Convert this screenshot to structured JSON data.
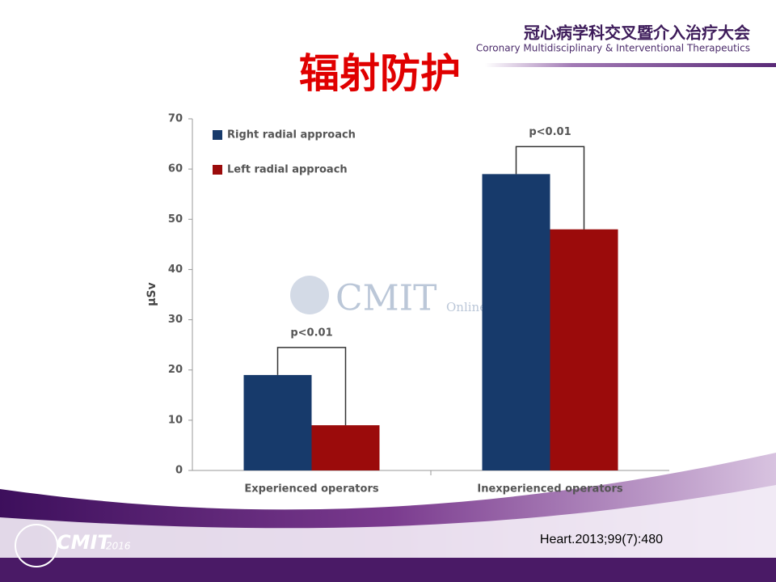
{
  "header": {
    "title": "冠心病学科交叉暨介入治疗大会",
    "subtitle": "Coronary Multidisciplinary & Interventional Therapeutics"
  },
  "watermark": {
    "main": "CMIT",
    "sub": "Online"
  },
  "logo": {
    "main": "CMIT",
    "year": "2016"
  },
  "citation": "Heart.2013;99(7):480",
  "chart_data": {
    "type": "bar",
    "title": "辐射防护",
    "y_label": "μSv",
    "categories": [
      "Experienced operators",
      "Inexperienced operators"
    ],
    "series": [
      {
        "name": "Right radial approach",
        "color": "#173a6b",
        "values": [
          19,
          59
        ]
      },
      {
        "name": "Left radial approach",
        "color": "#9b0b0b",
        "values": [
          9,
          48
        ]
      }
    ],
    "annotations": [
      "p<0.01",
      "p<0.01"
    ],
    "ylim": [
      0,
      70
    ],
    "yticks": [
      0,
      10,
      20,
      30,
      40,
      50,
      60,
      70
    ],
    "legend": "top-left"
  }
}
